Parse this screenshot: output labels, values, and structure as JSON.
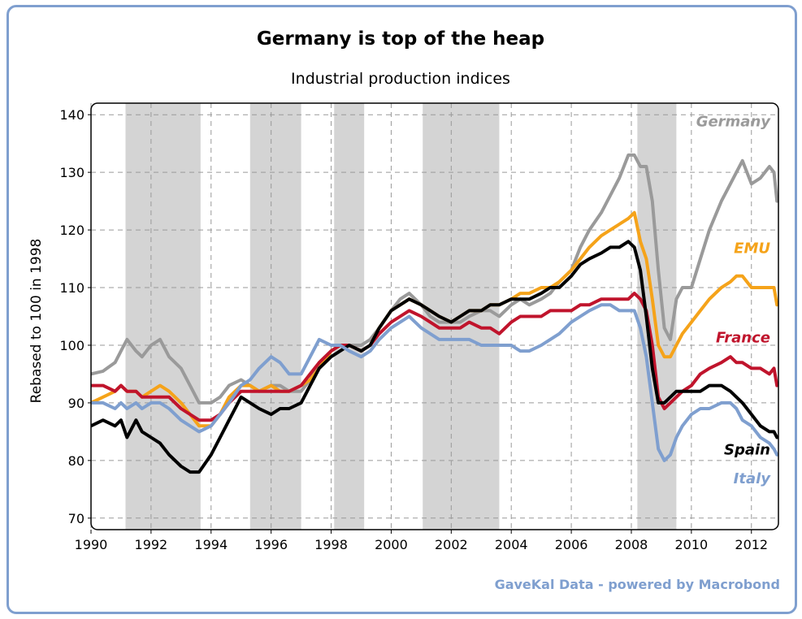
{
  "chart_data": {
    "type": "line",
    "title": "Germany is top of the heap",
    "subtitle": "Industrial production indices",
    "ylabel": "Rebased to 100 in 1998",
    "xlabel": "",
    "xlim": [
      1990,
      2012.9
    ],
    "ylim": [
      68,
      142
    ],
    "x_ticks": [
      "1990",
      "1992",
      "1994",
      "1996",
      "1998",
      "2000",
      "2002",
      "2004",
      "2006",
      "2008",
      "2010",
      "2012"
    ],
    "y_ticks": [
      "70",
      "80",
      "90",
      "100",
      "110",
      "120",
      "130",
      "140"
    ],
    "grid": true,
    "shaded_periods": [
      [
        1991.15,
        1993.65
      ],
      [
        1995.3,
        1997.0
      ],
      [
        1998.1,
        1999.1
      ],
      [
        2001.05,
        2003.6
      ],
      [
        2008.2,
        2009.5
      ]
    ],
    "source": "GaveKal Data - powered by Macrobond",
    "series": [
      {
        "name": "Germany",
        "color": "#9a9a9a",
        "x": [
          1990.0,
          1990.4,
          1990.8,
          1991.0,
          1991.2,
          1991.5,
          1991.7,
          1992.0,
          1992.3,
          1992.6,
          1993.0,
          1993.3,
          1993.6,
          1994.0,
          1994.3,
          1994.6,
          1995.0,
          1995.3,
          1995.6,
          1996.0,
          1996.3,
          1996.6,
          1997.0,
          1997.3,
          1997.6,
          1998.0,
          1998.3,
          1998.6,
          1999.0,
          1999.3,
          1999.6,
          2000.0,
          2000.3,
          2000.6,
          2001.0,
          2001.3,
          2001.6,
          2002.0,
          2002.3,
          2002.6,
          2003.0,
          2003.3,
          2003.6,
          2004.0,
          2004.3,
          2004.6,
          2005.0,
          2005.3,
          2005.6,
          2006.0,
          2006.3,
          2006.6,
          2007.0,
          2007.3,
          2007.6,
          2007.9,
          2008.1,
          2008.3,
          2008.5,
          2008.7,
          2008.9,
          2009.1,
          2009.3,
          2009.5,
          2009.7,
          2010.0,
          2010.3,
          2010.6,
          2011.0,
          2011.3,
          2011.5,
          2011.7,
          2012.0,
          2012.3,
          2012.6,
          2012.75,
          2012.85
        ],
        "y": [
          95,
          95.5,
          97,
          99,
          101,
          99,
          98,
          100,
          101,
          98,
          96,
          93,
          90,
          90,
          91,
          93,
          94,
          93,
          92,
          93,
          93,
          92,
          92,
          94,
          97,
          99,
          100,
          100,
          100,
          101,
          103,
          106,
          108,
          109,
          107,
          105,
          104,
          104,
          104,
          105,
          106,
          106,
          105,
          107,
          108,
          107,
          108,
          109,
          111,
          113,
          117,
          120,
          123,
          126,
          129,
          133,
          133,
          131,
          131,
          125,
          113,
          103,
          101,
          108,
          110,
          110,
          115,
          120,
          125,
          128,
          130,
          132,
          128,
          129,
          131,
          130,
          125
        ]
      },
      {
        "name": "EMU",
        "color": "#f5a31a",
        "x": [
          1990.0,
          1990.4,
          1990.8,
          1991.0,
          1991.2,
          1991.5,
          1991.7,
          1992.0,
          1992.3,
          1992.6,
          1993.0,
          1993.3,
          1993.6,
          1994.0,
          1994.3,
          1994.6,
          1995.0,
          1995.3,
          1995.6,
          1996.0,
          1996.3,
          1996.6,
          1997.0,
          1997.3,
          1997.6,
          1998.0,
          1998.3,
          1998.6,
          1999.0,
          1999.3,
          1999.6,
          2000.0,
          2000.3,
          2000.6,
          2001.0,
          2001.3,
          2001.6,
          2002.0,
          2002.3,
          2002.6,
          2003.0,
          2003.3,
          2003.6,
          2004.0,
          2004.3,
          2004.6,
          2005.0,
          2005.3,
          2005.6,
          2006.0,
          2006.3,
          2006.6,
          2007.0,
          2007.3,
          2007.6,
          2007.9,
          2008.1,
          2008.3,
          2008.5,
          2008.7,
          2008.9,
          2009.1,
          2009.3,
          2009.5,
          2009.7,
          2010.0,
          2010.3,
          2010.6,
          2011.0,
          2011.3,
          2011.5,
          2011.7,
          2012.0,
          2012.3,
          2012.6,
          2012.75,
          2012.85
        ],
        "y": [
          90,
          91,
          92,
          93,
          92,
          92,
          91,
          92,
          93,
          92,
          90,
          88,
          86,
          86,
          88,
          91,
          93,
          93,
          92,
          93,
          92,
          92,
          93,
          94,
          96,
          99,
          100,
          100,
          99,
          100,
          103,
          106,
          107,
          108,
          107,
          106,
          105,
          104,
          105,
          106,
          106,
          107,
          107,
          108,
          109,
          109,
          110,
          110,
          111,
          113,
          115,
          117,
          119,
          120,
          121,
          122,
          123,
          118,
          115,
          108,
          100,
          98,
          98,
          100,
          102,
          104,
          106,
          108,
          110,
          111,
          112,
          112,
          110,
          110,
          110,
          110,
          107
        ]
      },
      {
        "name": "France",
        "color": "#c0142c",
        "x": [
          1990.0,
          1990.4,
          1990.8,
          1991.0,
          1991.2,
          1991.5,
          1991.7,
          1992.0,
          1992.3,
          1992.6,
          1993.0,
          1993.3,
          1993.6,
          1994.0,
          1994.3,
          1994.6,
          1995.0,
          1995.3,
          1995.6,
          1996.0,
          1996.3,
          1996.6,
          1997.0,
          1997.3,
          1997.6,
          1998.0,
          1998.3,
          1998.6,
          1999.0,
          1999.3,
          1999.6,
          2000.0,
          2000.3,
          2000.6,
          2001.0,
          2001.3,
          2001.6,
          2002.0,
          2002.3,
          2002.6,
          2003.0,
          2003.3,
          2003.6,
          2004.0,
          2004.3,
          2004.6,
          2005.0,
          2005.3,
          2005.6,
          2006.0,
          2006.3,
          2006.6,
          2007.0,
          2007.3,
          2007.6,
          2007.9,
          2008.1,
          2008.3,
          2008.5,
          2008.7,
          2008.9,
          2009.1,
          2009.3,
          2009.5,
          2009.7,
          2010.0,
          2010.3,
          2010.6,
          2011.0,
          2011.3,
          2011.5,
          2011.7,
          2012.0,
          2012.3,
          2012.6,
          2012.75,
          2012.85
        ],
        "y": [
          93,
          93,
          92,
          93,
          92,
          92,
          91,
          91,
          91,
          91,
          89,
          88,
          87,
          87,
          88,
          90,
          92,
          92,
          92,
          92,
          92,
          92,
          93,
          95,
          97,
          99,
          100,
          100,
          99,
          100,
          102,
          104,
          105,
          106,
          105,
          104,
          103,
          103,
          103,
          104,
          103,
          103,
          102,
          104,
          105,
          105,
          105,
          106,
          106,
          106,
          107,
          107,
          108,
          108,
          108,
          108,
          109,
          108,
          106,
          100,
          91,
          89,
          90,
          91,
          92,
          93,
          95,
          96,
          97,
          98,
          97,
          97,
          96,
          96,
          95,
          96,
          93
        ]
      },
      {
        "name": "Spain",
        "color": "#000000",
        "x": [
          1990.0,
          1990.4,
          1990.8,
          1991.0,
          1991.2,
          1991.5,
          1991.7,
          1992.0,
          1992.3,
          1992.6,
          1993.0,
          1993.3,
          1993.6,
          1994.0,
          1994.3,
          1994.6,
          1995.0,
          1995.3,
          1995.6,
          1996.0,
          1996.3,
          1996.6,
          1997.0,
          1997.3,
          1997.6,
          1998.0,
          1998.3,
          1998.6,
          1999.0,
          1999.3,
          1999.6,
          2000.0,
          2000.3,
          2000.6,
          2001.0,
          2001.3,
          2001.6,
          2002.0,
          2002.3,
          2002.6,
          2003.0,
          2003.3,
          2003.6,
          2004.0,
          2004.3,
          2004.6,
          2005.0,
          2005.3,
          2005.6,
          2006.0,
          2006.3,
          2006.6,
          2007.0,
          2007.3,
          2007.6,
          2007.9,
          2008.1,
          2008.3,
          2008.5,
          2008.7,
          2008.9,
          2009.1,
          2009.3,
          2009.5,
          2009.7,
          2010.0,
          2010.3,
          2010.6,
          2011.0,
          2011.3,
          2011.5,
          2011.7,
          2012.0,
          2012.3,
          2012.6,
          2012.75,
          2012.85
        ],
        "y": [
          86,
          87,
          86,
          87,
          84,
          87,
          85,
          84,
          83,
          81,
          79,
          78,
          78,
          81,
          84,
          87,
          91,
          90,
          89,
          88,
          89,
          89,
          90,
          93,
          96,
          98,
          99,
          100,
          99,
          100,
          103,
          106,
          107,
          108,
          107,
          106,
          105,
          104,
          105,
          106,
          106,
          107,
          107,
          108,
          108,
          108,
          109,
          110,
          110,
          112,
          114,
          115,
          116,
          117,
          117,
          118,
          117,
          113,
          105,
          96,
          90,
          90,
          91,
          92,
          92,
          92,
          92,
          93,
          93,
          92,
          91,
          90,
          88,
          86,
          85,
          85,
          84
        ]
      },
      {
        "name": "Italy",
        "color": "#7f9fcf",
        "x": [
          1990.0,
          1990.4,
          1990.8,
          1991.0,
          1991.2,
          1991.5,
          1991.7,
          1992.0,
          1992.3,
          1992.6,
          1993.0,
          1993.3,
          1993.6,
          1994.0,
          1994.3,
          1994.6,
          1995.0,
          1995.3,
          1995.6,
          1996.0,
          1996.3,
          1996.6,
          1997.0,
          1997.3,
          1997.6,
          1998.0,
          1998.3,
          1998.6,
          1999.0,
          1999.3,
          1999.6,
          2000.0,
          2000.3,
          2000.6,
          2001.0,
          2001.3,
          2001.6,
          2002.0,
          2002.3,
          2002.6,
          2003.0,
          2003.3,
          2003.6,
          2004.0,
          2004.3,
          2004.6,
          2005.0,
          2005.3,
          2005.6,
          2006.0,
          2006.3,
          2006.6,
          2007.0,
          2007.3,
          2007.6,
          2007.9,
          2008.1,
          2008.3,
          2008.5,
          2008.7,
          2008.9,
          2009.1,
          2009.3,
          2009.5,
          2009.7,
          2010.0,
          2010.3,
          2010.6,
          2011.0,
          2011.3,
          2011.5,
          2011.7,
          2012.0,
          2012.3,
          2012.6,
          2012.75,
          2012.85
        ],
        "y": [
          90,
          90,
          89,
          90,
          89,
          90,
          89,
          90,
          90,
          89,
          87,
          86,
          85,
          86,
          88,
          90,
          93,
          94,
          96,
          98,
          97,
          95,
          95,
          98,
          101,
          100,
          100,
          99,
          98,
          99,
          101,
          103,
          104,
          105,
          103,
          102,
          101,
          101,
          101,
          101,
          100,
          100,
          100,
          100,
          99,
          99,
          100,
          101,
          102,
          104,
          105,
          106,
          107,
          107,
          106,
          106,
          106,
          103,
          98,
          90,
          82,
          80,
          81,
          84,
          86,
          88,
          89,
          89,
          90,
          90,
          89,
          87,
          86,
          84,
          83,
          82,
          81
        ]
      }
    ]
  }
}
